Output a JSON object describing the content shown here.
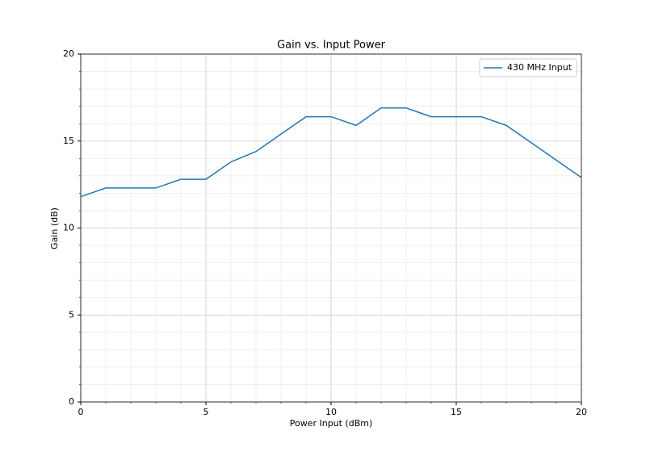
{
  "chart_data": {
    "type": "line",
    "title": "Gain vs. Input Power",
    "x_label": "Power Input (dBm)",
    "y_label": "Gain (dB)",
    "x": [
      0,
      1,
      2,
      3,
      4,
      5,
      6,
      7,
      8,
      9,
      10,
      11,
      12,
      13,
      14,
      15,
      16,
      17,
      18,
      19,
      20
    ],
    "series": [
      {
        "name": "430 MHz Input",
        "color": "#1f77b4",
        "values": [
          11.8,
          12.3,
          12.3,
          12.3,
          12.8,
          12.8,
          13.8,
          14.4,
          15.4,
          16.4,
          16.4,
          15.9,
          16.9,
          16.9,
          16.4,
          16.4,
          16.4,
          15.9,
          14.9,
          13.9,
          12.9
        ]
      }
    ],
    "xlim": [
      0,
      20
    ],
    "ylim": [
      0,
      20
    ],
    "xticks": [
      0,
      5,
      10,
      15,
      20
    ],
    "yticks": [
      0,
      5,
      10,
      15,
      20
    ],
    "grid": true,
    "minor_grid": true,
    "legend": "upper right"
  }
}
